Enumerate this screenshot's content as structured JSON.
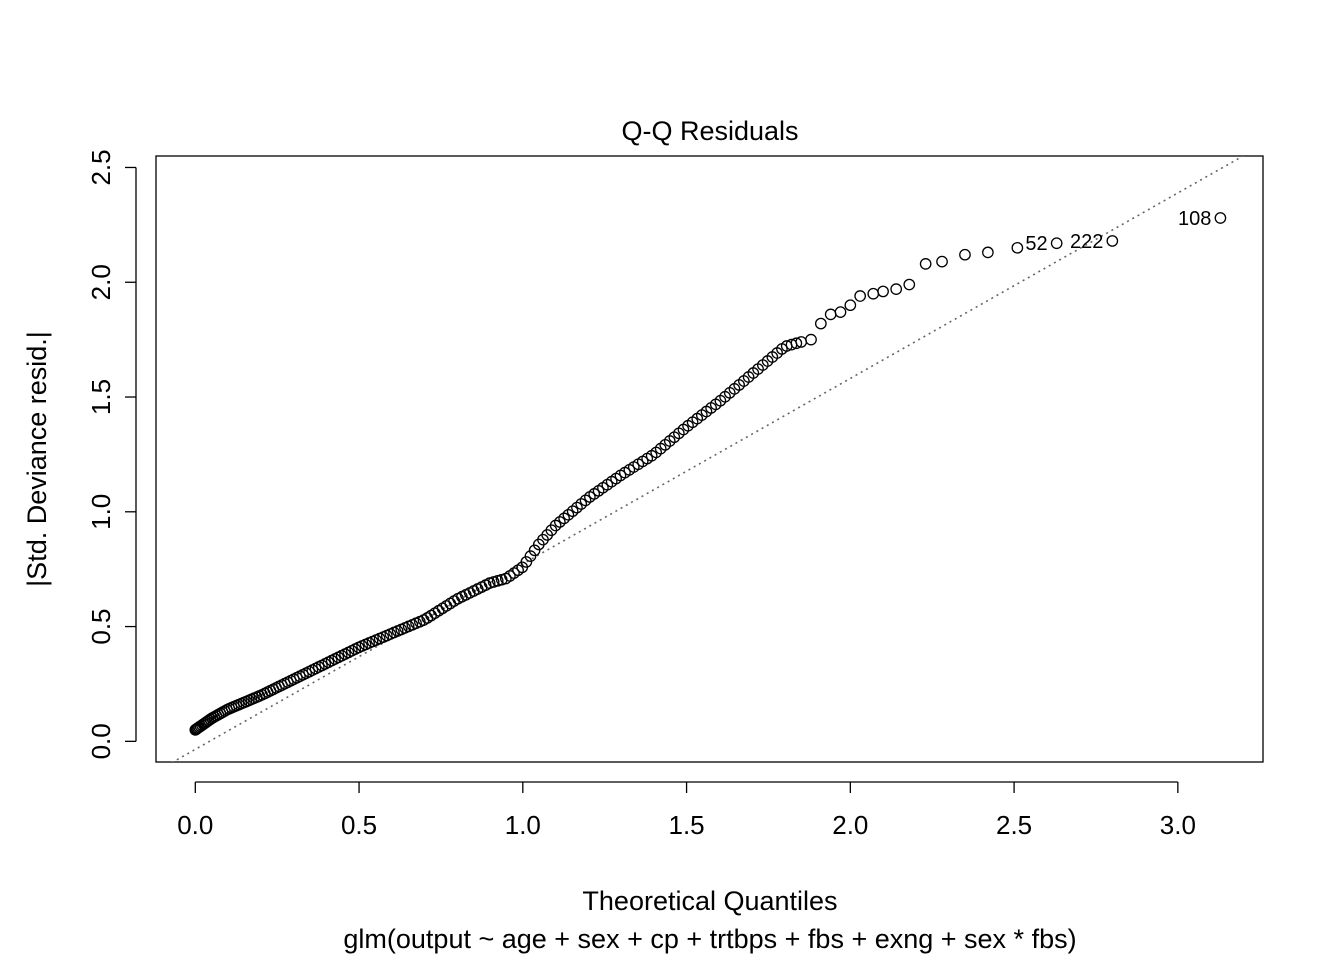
{
  "chart_data": {
    "type": "scatter",
    "title": "Q-Q Residuals",
    "xlabel": "Theoretical Quantiles",
    "subtitle": "glm(output ~ age + sex + cp + trtbps + fbs + exng + sex * fbs)",
    "ylabel": "|Std. Deviance resid.|",
    "xlim": [
      -0.12,
      3.26
    ],
    "ylim": [
      -0.09,
      2.55
    ],
    "xticks": [
      "0.0",
      "0.5",
      "1.0",
      "1.5",
      "2.0",
      "2.5",
      "3.0"
    ],
    "yticks": [
      "0.0",
      "0.5",
      "1.0",
      "1.5",
      "2.0",
      "2.5"
    ],
    "grid": false,
    "reference_line": {
      "style": "dotted",
      "color": "#666666",
      "slope": 0.808,
      "intercept": -0.035
    },
    "curve_knots": {
      "x": [
        0.0,
        0.05,
        0.1,
        0.2,
        0.3,
        0.4,
        0.5,
        0.6,
        0.7,
        0.8,
        0.9,
        0.95,
        1.0,
        1.05,
        1.1,
        1.2,
        1.3,
        1.4,
        1.5,
        1.6,
        1.7,
        1.8,
        1.85
      ],
      "y": [
        0.05,
        0.1,
        0.14,
        0.2,
        0.27,
        0.34,
        0.41,
        0.47,
        0.53,
        0.62,
        0.69,
        0.71,
        0.76,
        0.86,
        0.94,
        1.06,
        1.16,
        1.25,
        1.37,
        1.48,
        1.6,
        1.72,
        1.74
      ]
    },
    "curve_points": 170,
    "upper_points": [
      {
        "x": 1.88,
        "y": 1.75
      },
      {
        "x": 1.91,
        "y": 1.82
      },
      {
        "x": 1.94,
        "y": 1.86
      },
      {
        "x": 1.97,
        "y": 1.87
      },
      {
        "x": 2.0,
        "y": 1.9
      },
      {
        "x": 2.03,
        "y": 1.94
      },
      {
        "x": 2.07,
        "y": 1.95
      },
      {
        "x": 2.1,
        "y": 1.96
      },
      {
        "x": 2.14,
        "y": 1.97
      },
      {
        "x": 2.18,
        "y": 1.99
      },
      {
        "x": 2.23,
        "y": 2.08
      },
      {
        "x": 2.28,
        "y": 2.09
      },
      {
        "x": 2.35,
        "y": 2.12
      },
      {
        "x": 2.42,
        "y": 2.13
      },
      {
        "x": 2.51,
        "y": 2.15
      },
      {
        "x": 2.63,
        "y": 2.17
      },
      {
        "x": 2.8,
        "y": 2.18
      },
      {
        "x": 3.13,
        "y": 2.28
      }
    ],
    "labeled_points": [
      {
        "label": "52",
        "x": 2.63,
        "y": 2.17
      },
      {
        "label": "222",
        "x": 2.8,
        "y": 2.18
      },
      {
        "label": "108",
        "x": 3.13,
        "y": 2.28
      }
    ]
  }
}
